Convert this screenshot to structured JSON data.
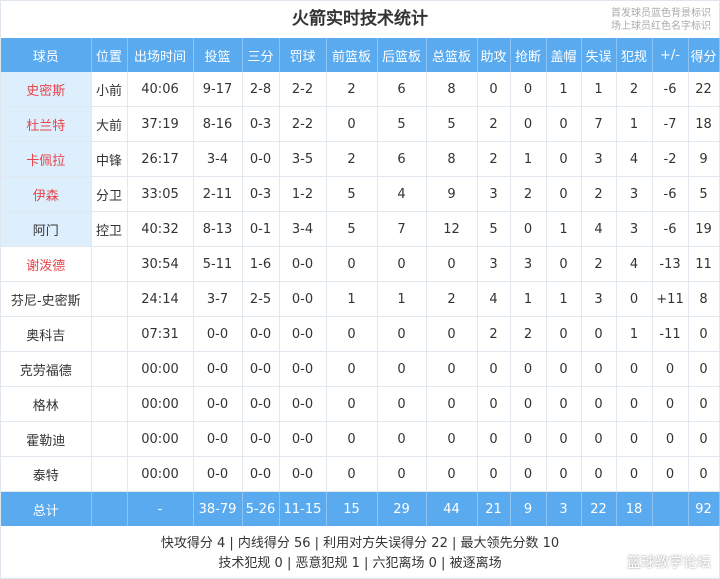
{
  "title": "火箭实时技术统计",
  "notes": [
    "首发球员蓝色背景标识",
    "场上球员红色名字标识"
  ],
  "headers": [
    "球员",
    "位置",
    "出场时间",
    "投篮",
    "三分",
    "罚球",
    "前篮板",
    "后篮板",
    "总篮板",
    "助攻",
    "抢断",
    "盖帽",
    "失误",
    "犯规",
    "+/-",
    "得分"
  ],
  "rows": [
    {
      "starter": true,
      "on_court": true,
      "cells": [
        "史密斯",
        "小前",
        "40:06",
        "9-17",
        "2-8",
        "2-2",
        "2",
        "6",
        "8",
        "0",
        "0",
        "1",
        "1",
        "2",
        "-6",
        "22"
      ]
    },
    {
      "starter": true,
      "on_court": true,
      "cells": [
        "杜兰特",
        "大前",
        "37:19",
        "8-16",
        "0-3",
        "2-2",
        "0",
        "5",
        "5",
        "2",
        "0",
        "0",
        "7",
        "1",
        "-7",
        "18"
      ]
    },
    {
      "starter": true,
      "on_court": true,
      "cells": [
        "卡佩拉",
        "中锋",
        "26:17",
        "3-4",
        "0-0",
        "3-5",
        "2",
        "6",
        "8",
        "2",
        "1",
        "0",
        "3",
        "4",
        "-2",
        "9"
      ]
    },
    {
      "starter": true,
      "on_court": true,
      "cells": [
        "伊森",
        "分卫",
        "33:05",
        "2-11",
        "0-3",
        "1-2",
        "5",
        "4",
        "9",
        "3",
        "2",
        "0",
        "2",
        "3",
        "-6",
        "5"
      ]
    },
    {
      "starter": true,
      "on_court": false,
      "cells": [
        "阿门",
        "控卫",
        "40:32",
        "8-13",
        "0-1",
        "3-4",
        "5",
        "7",
        "12",
        "5",
        "0",
        "1",
        "4",
        "3",
        "-6",
        "19"
      ]
    },
    {
      "starter": false,
      "on_court": true,
      "cells": [
        "谢泼德",
        "",
        "30:54",
        "5-11",
        "1-6",
        "0-0",
        "0",
        "0",
        "0",
        "3",
        "3",
        "0",
        "2",
        "4",
        "-13",
        "11"
      ]
    },
    {
      "starter": false,
      "on_court": false,
      "cells": [
        "芬尼-史密斯",
        "",
        "24:14",
        "3-7",
        "2-5",
        "0-0",
        "1",
        "1",
        "2",
        "4",
        "1",
        "1",
        "3",
        "0",
        "+11",
        "8"
      ]
    },
    {
      "starter": false,
      "on_court": false,
      "cells": [
        "奥科吉",
        "",
        "07:31",
        "0-0",
        "0-0",
        "0-0",
        "0",
        "0",
        "0",
        "2",
        "2",
        "0",
        "0",
        "1",
        "-11",
        "0"
      ]
    },
    {
      "starter": false,
      "on_court": false,
      "cells": [
        "克劳福德",
        "",
        "00:00",
        "0-0",
        "0-0",
        "0-0",
        "0",
        "0",
        "0",
        "0",
        "0",
        "0",
        "0",
        "0",
        "0",
        "0"
      ]
    },
    {
      "starter": false,
      "on_court": false,
      "cells": [
        "格林",
        "",
        "00:00",
        "0-0",
        "0-0",
        "0-0",
        "0",
        "0",
        "0",
        "0",
        "0",
        "0",
        "0",
        "0",
        "0",
        "0"
      ]
    },
    {
      "starter": false,
      "on_court": false,
      "cells": [
        "霍勒迪",
        "",
        "00:00",
        "0-0",
        "0-0",
        "0-0",
        "0",
        "0",
        "0",
        "0",
        "0",
        "0",
        "0",
        "0",
        "0",
        "0"
      ]
    },
    {
      "starter": false,
      "on_court": false,
      "cells": [
        "泰特",
        "",
        "00:00",
        "0-0",
        "0-0",
        "0-0",
        "0",
        "0",
        "0",
        "0",
        "0",
        "0",
        "0",
        "0",
        "0",
        "0"
      ]
    }
  ],
  "total": [
    "总计",
    "",
    "-",
    "38-79",
    "5-26",
    "11-15",
    "15",
    "29",
    "44",
    "21",
    "9",
    "3",
    "22",
    "18",
    "",
    "92"
  ],
  "footer": [
    "快攻得分 4 | 内线得分 56 | 利用对方失误得分 22 | 最大领先分数 10",
    "技术犯规 0 | 恶意犯规 1 | 六犯离场 0 | 被逐离场"
  ],
  "watermark": "篮球教学论坛",
  "colors": {
    "header_bg": "#5aaaf0",
    "starter_bg": "#ddeefc",
    "on_court_name": "#e8454a"
  }
}
